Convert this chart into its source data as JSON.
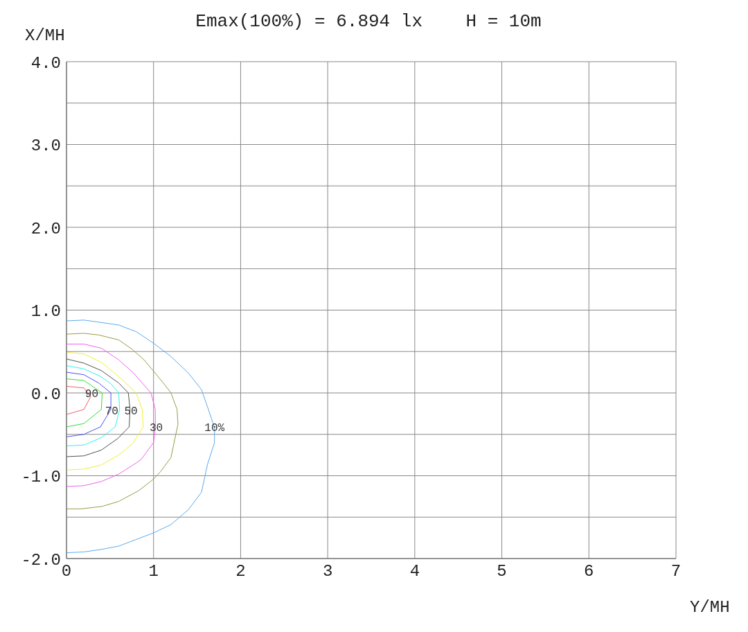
{
  "chart_data": {
    "type": "line",
    "title": "Emax(100%) = 6.894 lx    H = 10m",
    "xlabel": "Y/MH",
    "ylabel": "X/MH",
    "xlim": [
      0,
      7
    ],
    "xticks": [
      0,
      1,
      2,
      3,
      4,
      5,
      6,
      7
    ],
    "ylim": [
      -2,
      4
    ],
    "yticks": [
      {
        "value": -2,
        "label": "-2.0"
      },
      {
        "value": -1.5,
        "label": null
      },
      {
        "value": -1,
        "label": "-1.0"
      },
      {
        "value": -0.5,
        "label": null
      },
      {
        "value": 0,
        "label": "0.0"
      },
      {
        "value": 0.5,
        "label": null
      },
      {
        "value": 1,
        "label": "1.0"
      },
      {
        "value": 1.5,
        "label": null
      },
      {
        "value": 2,
        "label": "2.0"
      },
      {
        "value": 2.5,
        "label": null
      },
      {
        "value": 3,
        "label": "3.0"
      },
      {
        "value": 3.5,
        "label": null
      },
      {
        "value": 4,
        "label": "4.0"
      }
    ],
    "grid": true,
    "marker": "none",
    "line_style": "solid",
    "series": [
      {
        "color": "#5aaaf0",
        "x": [
          0,
          0.2,
          0.6,
          0.8,
          1.0,
          1.2,
          1.4,
          1.55,
          1.63,
          1.7,
          1.7,
          1.62,
          1.55,
          1.4,
          1.2,
          1.0,
          0.8,
          0.6,
          0.4,
          0.2,
          0
        ],
        "values": [
          0.87,
          0.88,
          0.82,
          0.74,
          0.6,
          0.44,
          0.24,
          0.04,
          -0.2,
          -0.42,
          -0.6,
          -0.86,
          -1.2,
          -1.41,
          -1.59,
          -1.69,
          -1.77,
          -1.85,
          -1.89,
          -1.92,
          -1.93
        ]
      },
      {
        "color": "#9a9a45",
        "x": [
          0,
          0.2,
          0.37,
          0.6,
          0.75,
          0.89,
          1.01,
          1.12,
          1.2,
          1.27,
          1.28,
          1.2,
          1.08,
          1.0,
          0.83,
          0.6,
          0.41,
          0.17,
          0
        ],
        "values": [
          0.71,
          0.72,
          0.7,
          0.64,
          0.53,
          0.4,
          0.25,
          0.11,
          0,
          -0.2,
          -0.38,
          -0.78,
          -0.95,
          -1.04,
          -1.18,
          -1.31,
          -1.37,
          -1.4,
          -1.4
        ]
      },
      {
        "color": "#f060f0",
        "x": [
          0,
          0.2,
          0.4,
          0.6,
          0.77,
          0.97,
          1.02,
          1.02,
          1.0,
          0.86,
          0.81,
          0.6,
          0.4,
          0.2,
          0
        ],
        "values": [
          0.59,
          0.59,
          0.54,
          0.4,
          0.24,
          0,
          -0.2,
          -0.43,
          -0.6,
          -0.8,
          -0.84,
          -0.98,
          -1.07,
          -1.12,
          -1.13
        ]
      },
      {
        "color": "#f0f030",
        "x": [
          0,
          0.2,
          0.4,
          0.6,
          0.8,
          0.87,
          0.88,
          0.87,
          0.76,
          0.6,
          0.4,
          0.2,
          0
        ],
        "values": [
          0.49,
          0.47,
          0.37,
          0.2,
          0,
          -0.2,
          -0.41,
          -0.43,
          -0.61,
          -0.75,
          -0.87,
          -0.92,
          -0.93
        ]
      },
      {
        "color": "#505050",
        "x": [
          0,
          0.2,
          0.4,
          0.6,
          0.71,
          0.73,
          0.72,
          0.59,
          0.4,
          0.2,
          0
        ],
        "values": [
          0.41,
          0.36,
          0.27,
          0.12,
          0,
          -0.2,
          -0.41,
          -0.55,
          -0.69,
          -0.76,
          -0.77
        ]
      },
      {
        "color": "#30f0f0",
        "x": [
          0,
          0.2,
          0.39,
          0.51,
          0.6,
          0.61,
          0.56,
          0.4,
          0.2,
          0
        ],
        "values": [
          0.33,
          0.29,
          0.2,
          0.11,
          0,
          -0.2,
          -0.41,
          -0.54,
          -0.63,
          -0.64
        ]
      },
      {
        "color": "#5050f0",
        "x": [
          0,
          0.2,
          0.37,
          0.51,
          0.51,
          0.39,
          0.2,
          0
        ],
        "values": [
          0.25,
          0.22,
          0.12,
          0,
          -0.2,
          -0.41,
          -0.5,
          -0.53
        ]
      },
      {
        "color": "#30e030",
        "x": [
          0,
          0.2,
          0.41,
          0.4,
          0.2,
          0
        ],
        "values": [
          0.17,
          0.15,
          0,
          -0.2,
          -0.37,
          -0.41
        ]
      },
      {
        "color": "#f06060",
        "x": [
          0,
          0.2,
          0.28,
          0.2,
          0
        ],
        "values": [
          0.08,
          0.06,
          -0.04,
          -0.2,
          -0.26
        ]
      }
    ],
    "annotations": [
      {
        "text": "90",
        "x": 0.29,
        "y": 0
      },
      {
        "text": "70",
        "x": 0.52,
        "y": -0.21
      },
      {
        "text": "50",
        "x": 0.74,
        "y": -0.21
      },
      {
        "text": "30",
        "x": 1.03,
        "y": -0.41
      },
      {
        "text": "10%",
        "x": 1.7,
        "y": -0.41
      }
    ]
  }
}
